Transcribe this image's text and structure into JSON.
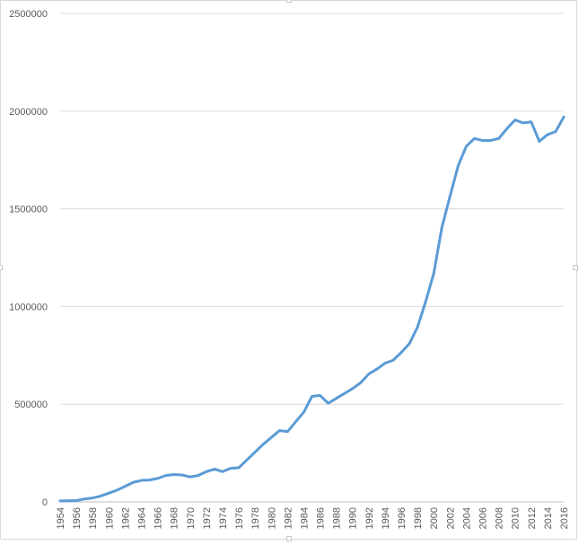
{
  "chart_data": {
    "type": "line",
    "title": "",
    "xlabel": "",
    "ylabel": "",
    "ylim": [
      0,
      2500000
    ],
    "y_ticks": [
      "0",
      "500000",
      "1000000",
      "1500000",
      "2000000",
      "2500000"
    ],
    "x_tick_labels": [
      "1954",
      "1956",
      "1958",
      "1960",
      "1962",
      "1964",
      "1966",
      "1968",
      "1970",
      "1972",
      "1974",
      "1976",
      "1978",
      "1980",
      "1982",
      "1984",
      "1986",
      "1988",
      "1990",
      "1992",
      "1994",
      "1996",
      "1998",
      "2000",
      "2002",
      "2004",
      "2006",
      "2008",
      "2010",
      "2012",
      "2014",
      "2016"
    ],
    "grid": "horizontal",
    "legend": "none",
    "line_color": "#5b9bd5",
    "x": [
      1954,
      1955,
      1956,
      1957,
      1958,
      1959,
      1960,
      1961,
      1962,
      1963,
      1964,
      1965,
      1966,
      1967,
      1968,
      1969,
      1970,
      1971,
      1972,
      1973,
      1974,
      1975,
      1976,
      1977,
      1978,
      1979,
      1980,
      1981,
      1982,
      1983,
      1984,
      1985,
      1986,
      1987,
      1988,
      1989,
      1990,
      1991,
      1992,
      1993,
      1994,
      1995,
      1996,
      1997,
      1998,
      1999,
      2000,
      2001,
      2002,
      2003,
      2004,
      2005,
      2006,
      2007,
      2008,
      2009,
      2010,
      2011,
      2012,
      2013,
      2014,
      2015,
      2016
    ],
    "series": [
      {
        "values": [
          5000,
          6000,
          7000,
          15000,
          20000,
          30000,
          45000,
          60000,
          80000,
          100000,
          110000,
          112000,
          120000,
          135000,
          140000,
          138000,
          128000,
          135000,
          155000,
          168000,
          155000,
          172000,
          175000,
          215000,
          255000,
          295000,
          330000,
          365000,
          360000,
          410000,
          460000,
          540000,
          545000,
          505000,
          530000,
          555000,
          580000,
          610000,
          655000,
          680000,
          710000,
          725000,
          765000,
          810000,
          895000,
          1025000,
          1170000,
          1405000,
          1565000,
          1720000,
          1820000,
          1860000,
          1850000,
          1850000,
          1860000,
          1910000,
          1955000,
          1940000,
          1945000,
          1845000,
          1880000,
          1895000,
          1970000
        ]
      }
    ]
  }
}
